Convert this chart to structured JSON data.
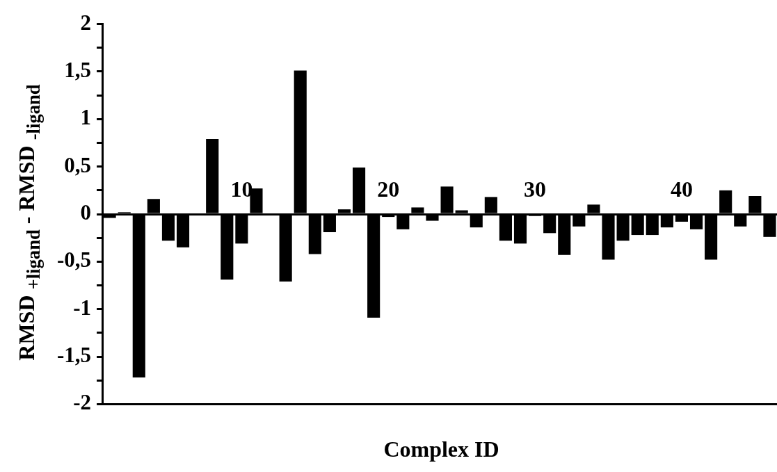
{
  "chart_data": {
    "type": "bar",
    "xlabel": "Complex ID",
    "ylabel": "RMSD $_{+ligand}$ - RMSD $_{-ligand}$",
    "categories": [
      null,
      null,
      null,
      null,
      null,
      null,
      null,
      null,
      null,
      "10",
      null,
      null,
      null,
      null,
      null,
      null,
      null,
      null,
      null,
      "20",
      null,
      null,
      null,
      null,
      null,
      null,
      null,
      null,
      null,
      "30",
      null,
      null,
      null,
      null,
      null,
      null,
      null,
      null,
      null,
      "40",
      null,
      null,
      null,
      null,
      null,
      null
    ],
    "values": [
      -0.04,
      0.02,
      -1.72,
      0.16,
      -0.28,
      -0.35,
      0,
      0.79,
      -0.69,
      -0.31,
      0.27,
      0,
      -0.71,
      1.51,
      -0.42,
      -0.19,
      0.05,
      0.49,
      -1.09,
      -0.03,
      -0.16,
      0.07,
      -0.07,
      0.29,
      0.04,
      -0.14,
      0.18,
      -0.28,
      -0.31,
      -0.02,
      -0.2,
      -0.43,
      -0.13,
      0.1,
      -0.48,
      -0.28,
      -0.22,
      -0.22,
      -0.14,
      -0.08,
      -0.16,
      -0.48,
      0.25,
      -0.13,
      0.19,
      -0.24
    ],
    "color": "#000000",
    "ylim": [
      -2,
      2
    ],
    "yticks": [
      -2,
      {
        "value": -1.75,
        "label": null
      },
      {
        "value": -1.5,
        "label": "-1,5"
      },
      {
        "value": -1.25,
        "label": null
      },
      -1,
      {
        "value": -0.75,
        "label": null
      },
      {
        "value": -0.5,
        "label": "-0,5"
      },
      {
        "value": -0.25,
        "label": null
      },
      0,
      {
        "value": 0.25,
        "label": null
      },
      {
        "value": 0.5,
        "label": "0,5"
      },
      {
        "value": 0.75,
        "label": null
      },
      1,
      {
        "value": 1.25,
        "label": null
      },
      {
        "value": 1.5,
        "label": "1,5"
      },
      {
        "value": 1.75,
        "label": null
      },
      2
    ],
    "grid": false,
    "legend": false
  }
}
